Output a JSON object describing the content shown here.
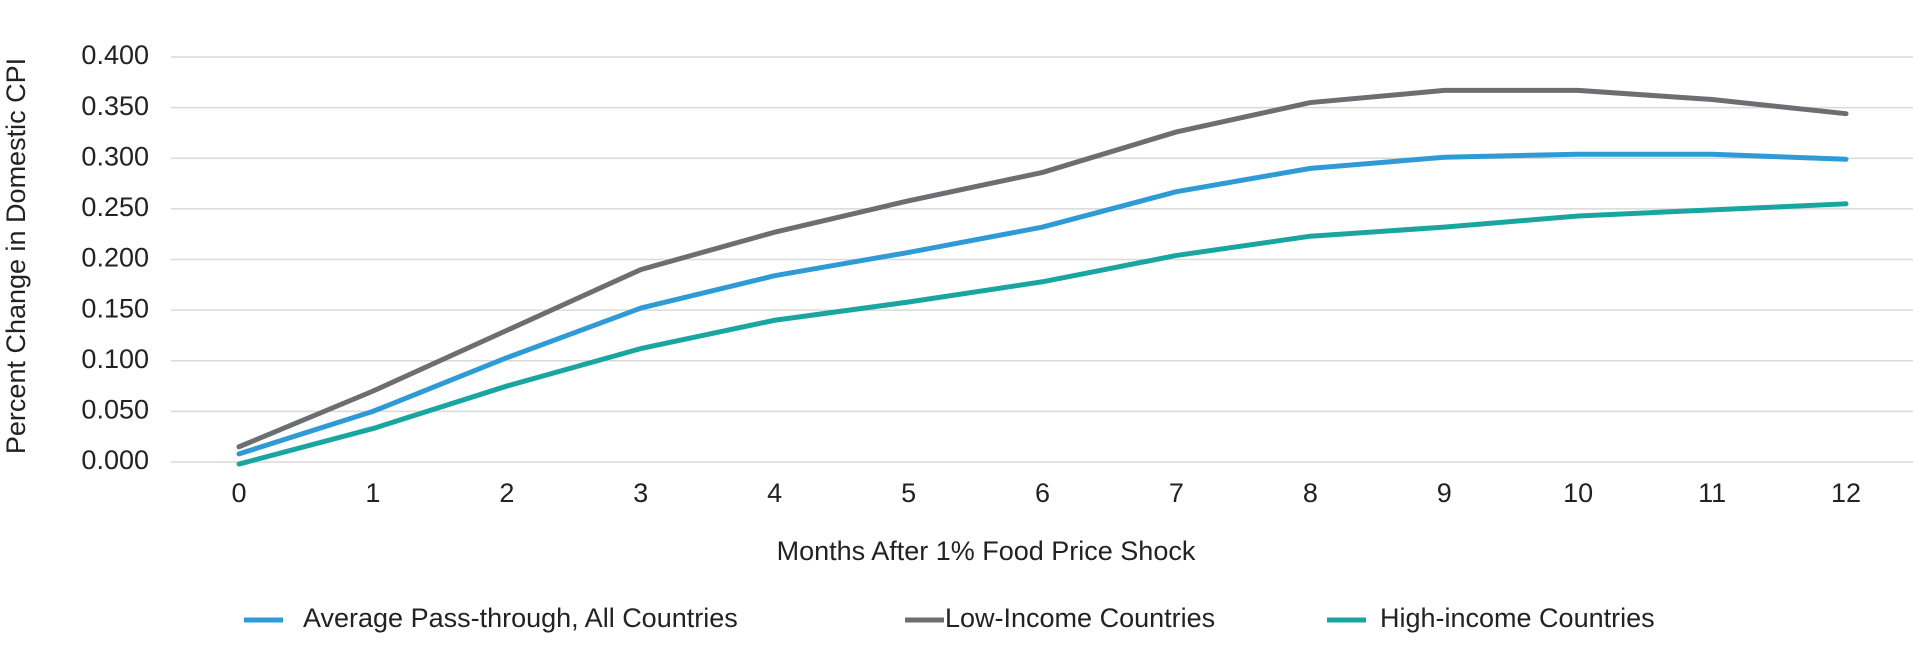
{
  "chart_data": {
    "type": "line",
    "x_label": "Months After 1% Food Price Shock",
    "y_label": "Percent Change in Domestic CPI",
    "categories": [
      "0",
      "1",
      "2",
      "3",
      "4",
      "5",
      "6",
      "7",
      "8",
      "9",
      "10",
      "11",
      "12"
    ],
    "series": [
      {
        "name": "Average Pass-through, All Countries",
        "color": "#2e9bd6",
        "values": [
          0.008,
          0.05,
          0.103,
          0.152,
          0.184,
          0.207,
          0.232,
          0.267,
          0.29,
          0.301,
          0.304,
          0.304,
          0.299
        ]
      },
      {
        "name": "Low-Income Countries",
        "color": "#6d6e71",
        "values": [
          0.015,
          0.07,
          0.13,
          0.19,
          0.227,
          0.258,
          0.286,
          0.326,
          0.355,
          0.367,
          0.367,
          0.358,
          0.344
        ]
      },
      {
        "name": "High-income Countries",
        "color": "#1aa6a0",
        "values": [
          -0.002,
          0.033,
          0.075,
          0.112,
          0.14,
          0.158,
          0.178,
          0.204,
          0.223,
          0.232,
          0.243,
          0.249,
          0.255
        ]
      }
    ],
    "ylim": [
      0,
      0.4
    ],
    "yticks": [
      {
        "value": 0,
        "label": "0.000"
      },
      {
        "value": 0.05,
        "label": "0.050"
      },
      {
        "value": 0.1,
        "label": "0.100"
      },
      {
        "value": 0.15,
        "label": "0.150"
      },
      {
        "value": 0.2,
        "label": "0.200"
      },
      {
        "value": 0.25,
        "label": "0.250"
      },
      {
        "value": 0.3,
        "label": "0.300"
      },
      {
        "value": 0.35,
        "label": "0.350"
      },
      {
        "value": 0.4,
        "label": "0.400"
      }
    ],
    "grid": true,
    "legend": "bottom"
  }
}
